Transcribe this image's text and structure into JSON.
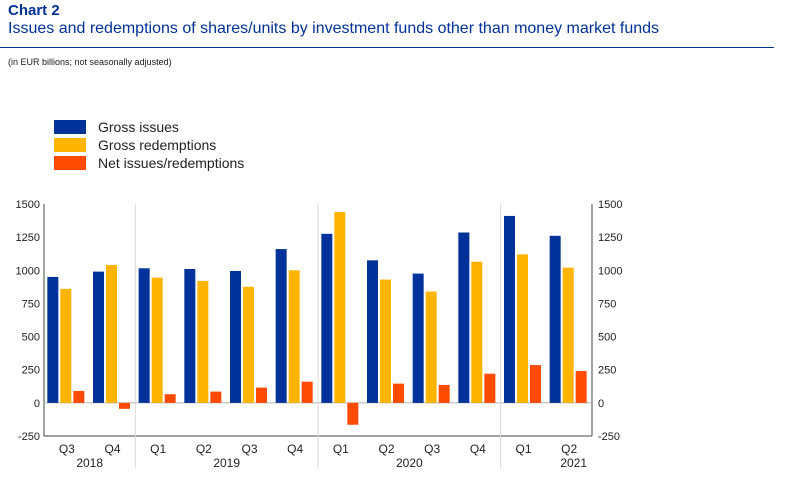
{
  "header": {
    "chart_number": "Chart 2",
    "title": "Issues and redemptions of shares/units by investment funds other than money market funds",
    "subtitle": "(in EUR billions; not seasonally adjusted)"
  },
  "colors": {
    "gross_issues": "#003299",
    "gross_redemptions": "#FFB400",
    "net": "#FF4B00",
    "title": "#003299",
    "grid": "#d9d9d9"
  },
  "chart_data": {
    "type": "bar",
    "categories": [
      "Q3",
      "Q4",
      "Q1",
      "Q2",
      "Q3",
      "Q4",
      "Q1",
      "Q2",
      "Q3",
      "Q4",
      "Q1",
      "Q2"
    ],
    "years": [
      {
        "label": "2018",
        "quarters": [
          "Q3",
          "Q4"
        ]
      },
      {
        "label": "2019",
        "quarters": [
          "Q1",
          "Q2",
          "Q3",
          "Q4"
        ]
      },
      {
        "label": "2020",
        "quarters": [
          "Q1",
          "Q2",
          "Q3",
          "Q4"
        ]
      },
      {
        "label": "2021",
        "quarters": [
          "Q1",
          "Q2"
        ]
      }
    ],
    "series": [
      {
        "name": "Gross issues",
        "color": "#003299",
        "values": [
          950,
          990,
          1015,
          1010,
          995,
          1160,
          1275,
          1075,
          975,
          1285,
          1410,
          1260
        ]
      },
      {
        "name": "Gross redemptions",
        "color": "#FFB400",
        "values": [
          860,
          1040,
          945,
          920,
          875,
          1000,
          1440,
          930,
          840,
          1065,
          1120,
          1020
        ]
      },
      {
        "name": "Net issues/redemptions",
        "color": "#FF4B00",
        "values": [
          90,
          -45,
          65,
          85,
          115,
          160,
          -165,
          145,
          135,
          220,
          285,
          240
        ]
      }
    ],
    "ylim": [
      -250,
      1500
    ],
    "yticks": [
      -250,
      0,
      250,
      500,
      750,
      1000,
      1250,
      1500
    ],
    "ytick_labels": [
      "-250",
      "0",
      "250",
      "500",
      "750",
      "1000",
      "1250",
      "1500"
    ],
    "grid": "vertical separators between years",
    "legend_position": "top-left",
    "xlabel": "",
    "ylabel": ""
  }
}
